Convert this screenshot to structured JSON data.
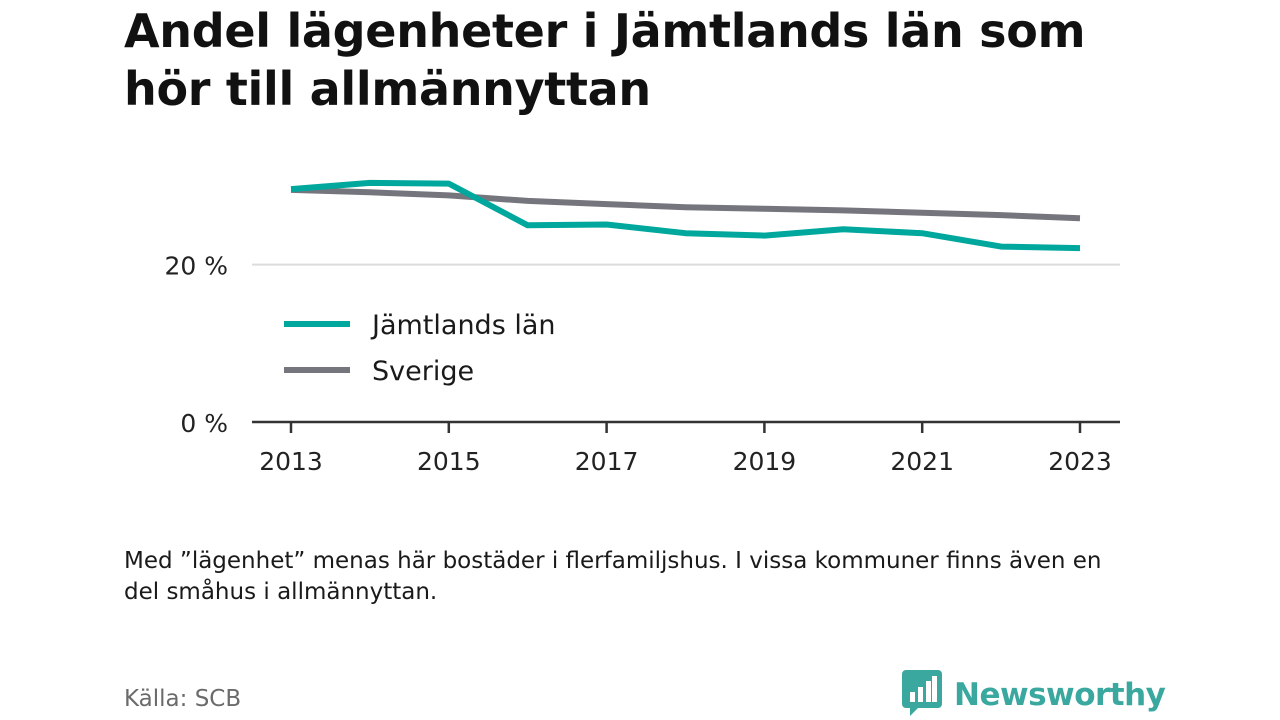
{
  "title": "Andel lägenheter i Jämtlands län som hör till allmännyttan",
  "note": "Med ”lägenhet” menas här bostäder i flerfamiljshus. I vissa kommuner finns även en del småhus i allmännyttan.",
  "source": "Källa: SCB",
  "brand": {
    "name": "Newsworthy",
    "logo_icon": "bar-chart-speech-bubble-icon"
  },
  "chart_data": {
    "type": "line",
    "title": "Andel lägenheter i Jämtlands län som hör till allmännyttan",
    "x": [
      2013,
      2014,
      2015,
      2016,
      2017,
      2018,
      2019,
      2020,
      2021,
      2022,
      2023
    ],
    "x_ticks": [
      "2013",
      "2015",
      "2017",
      "2019",
      "2021",
      "2023"
    ],
    "y_ticks": [
      "0 %",
      "20 %"
    ],
    "y_tick_values": [
      0,
      20
    ],
    "ylim": [
      0,
      30
    ],
    "grid": "horizontal",
    "legend_position": "inside-left",
    "series": [
      {
        "name": "Jämtlands län",
        "color": "#00a79d",
        "values": [
          29.6,
          30.4,
          30.3,
          25.0,
          25.1,
          24.0,
          23.7,
          24.5,
          24.0,
          22.3,
          22.1
        ]
      },
      {
        "name": "Sverige",
        "color": "#75757d",
        "values": [
          29.5,
          29.2,
          28.8,
          28.1,
          27.7,
          27.3,
          27.1,
          26.9,
          26.6,
          26.3,
          25.9
        ]
      }
    ]
  }
}
